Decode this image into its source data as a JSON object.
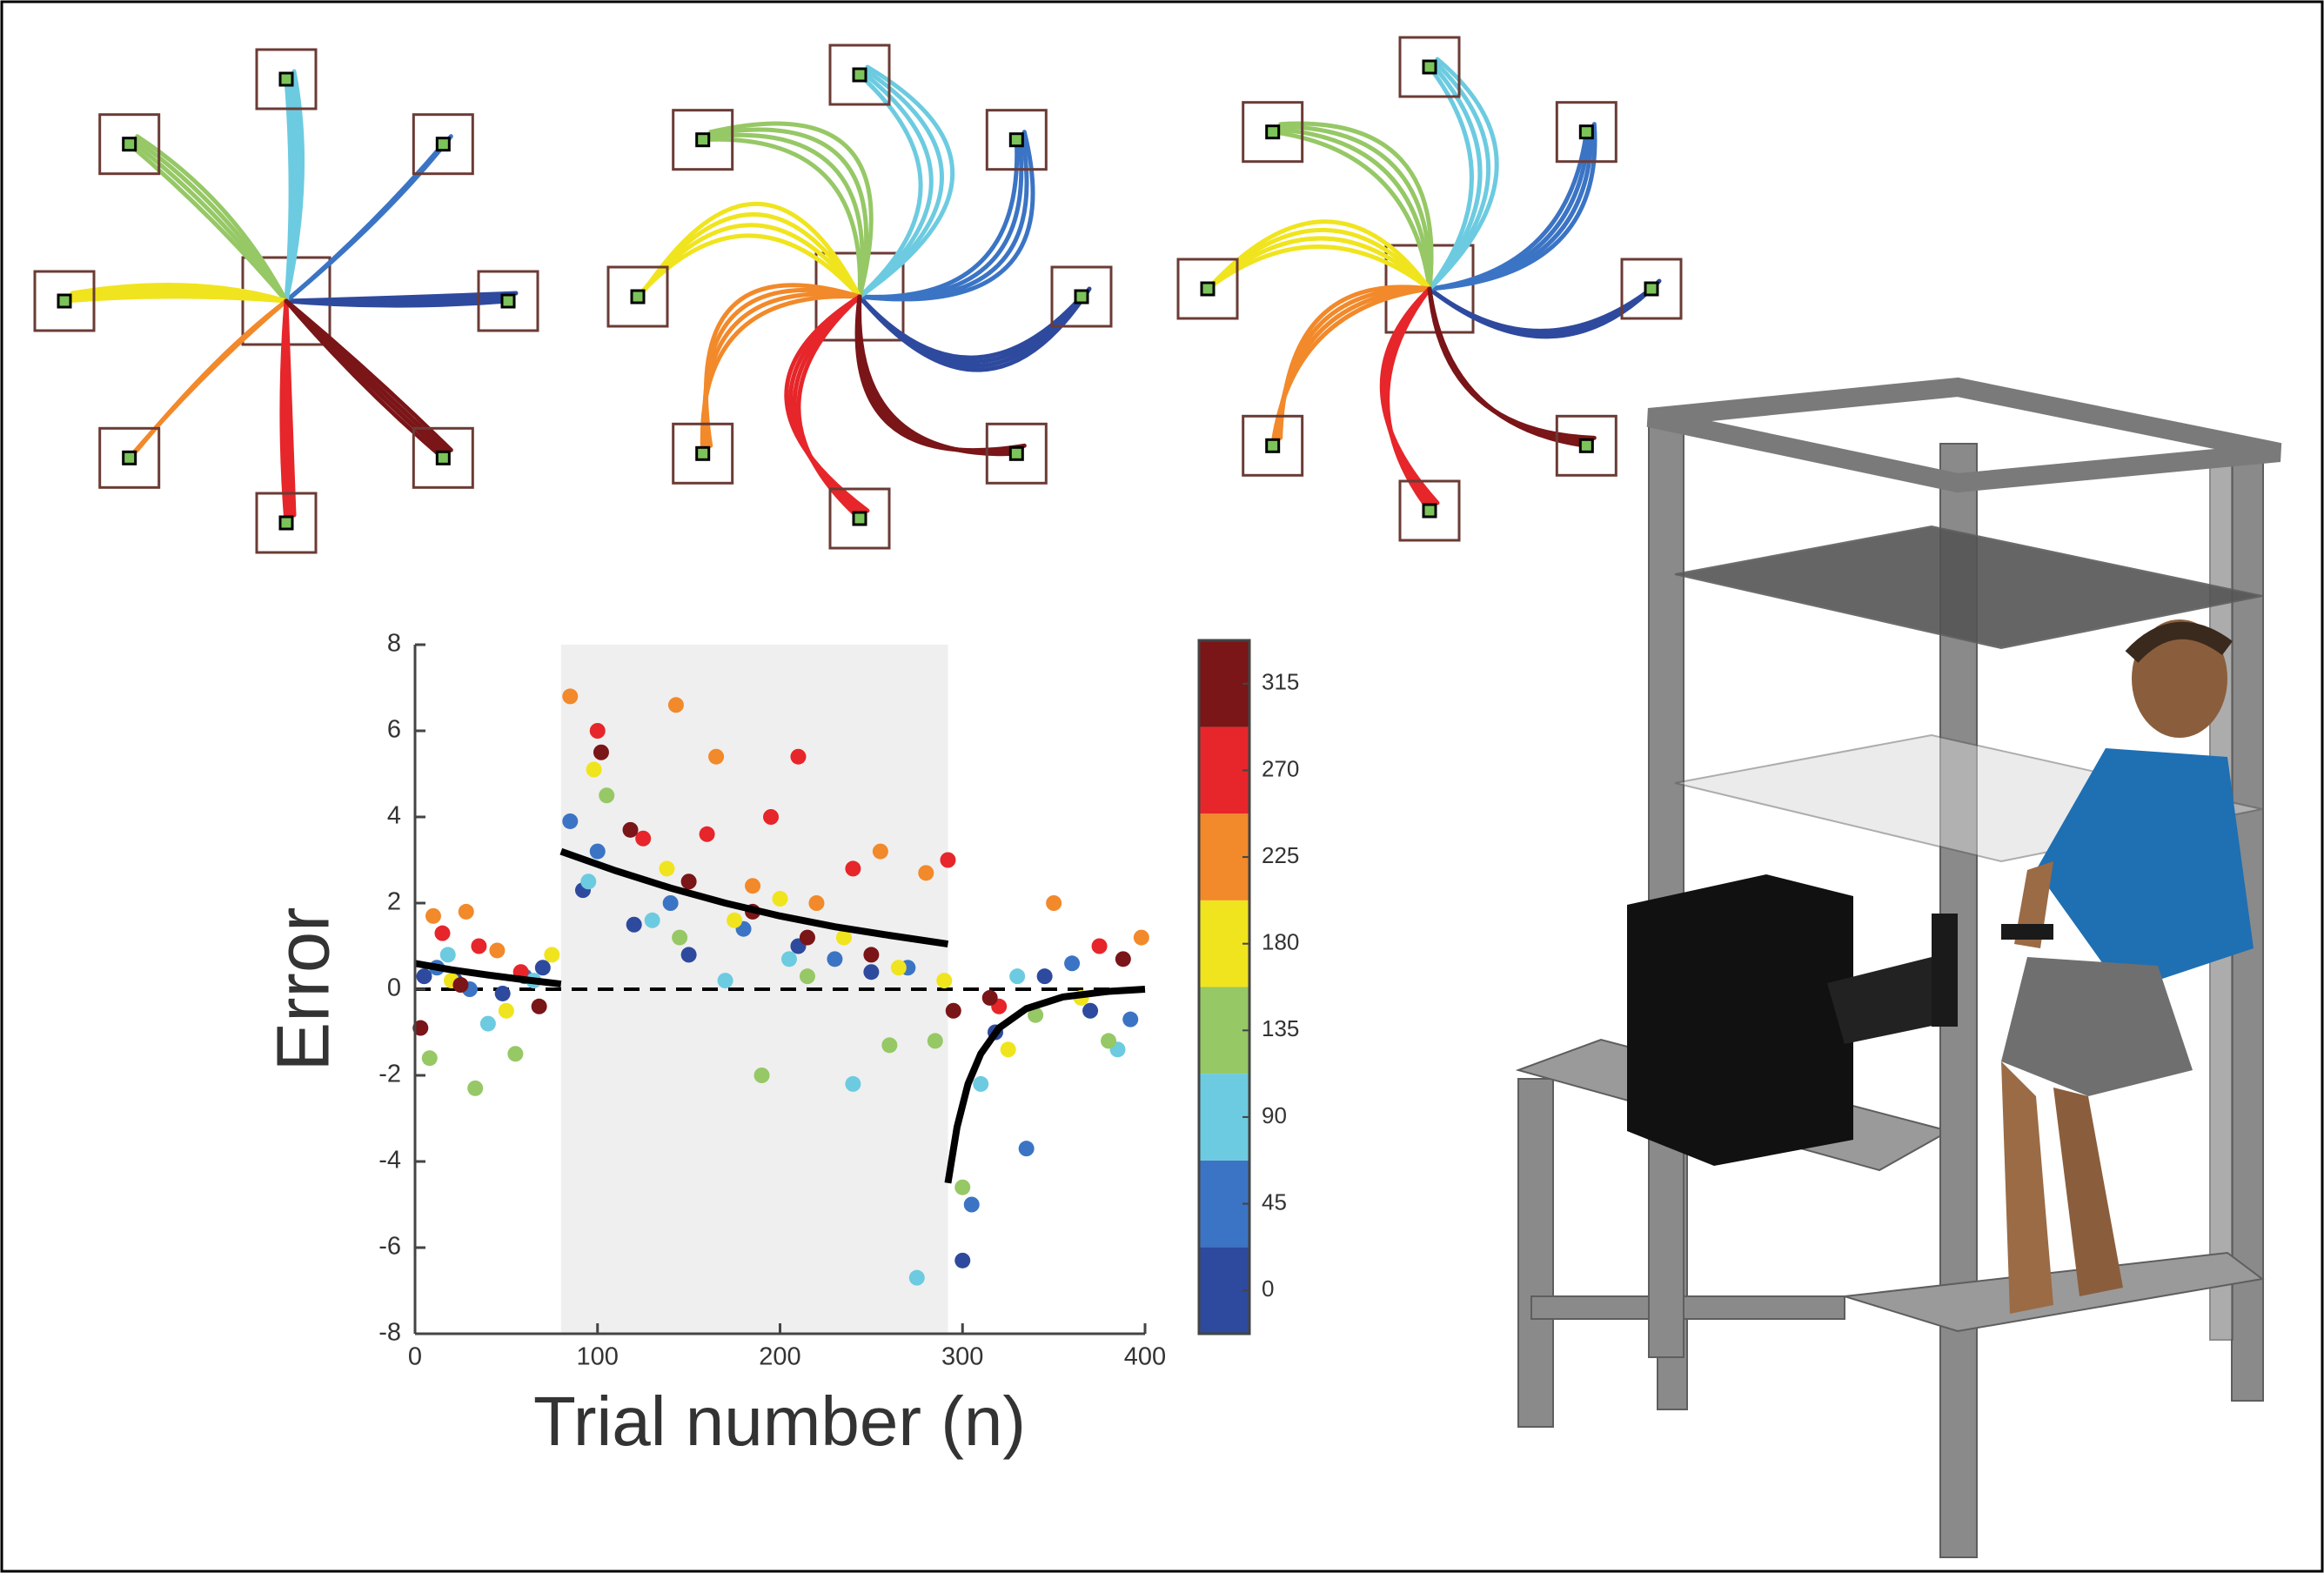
{
  "chart_data": {
    "type": "scatter",
    "xlabel": "Trial number (n)",
    "ylabel": "Error",
    "xlim": [
      0,
      400
    ],
    "ylim": [
      -8,
      8
    ],
    "xticks": [
      0,
      100,
      200,
      300,
      400
    ],
    "yticks": [
      -8,
      -6,
      -4,
      -2,
      0,
      2,
      4,
      6,
      8
    ],
    "shaded_x": [
      80,
      292
    ],
    "reference_line": 0,
    "series": [
      {
        "color": "#2e4a9e",
        "x": [
          5,
          22,
          48,
          70,
          92,
          120,
          150,
          210,
          250,
          300,
          318,
          345,
          370
        ],
        "values": [
          0.3,
          0.2,
          -0.1,
          0.5,
          2.3,
          1.5,
          0.8,
          1.0,
          0.4,
          -6.3,
          -1.0,
          0.3,
          -0.5
        ]
      },
      {
        "color": "#3b74c4",
        "x": [
          12,
          30,
          60,
          85,
          100,
          140,
          180,
          230,
          270,
          305,
          335,
          360,
          392
        ],
        "values": [
          0.5,
          0.0,
          0.3,
          3.9,
          3.2,
          2.0,
          1.4,
          0.7,
          0.5,
          -5.0,
          -3.7,
          0.6,
          -0.7
        ]
      },
      {
        "color": "#6ccbe0",
        "x": [
          18,
          40,
          65,
          95,
          130,
          170,
          205,
          240,
          275,
          310,
          330,
          385
        ],
        "values": [
          0.8,
          -0.8,
          0.2,
          2.5,
          1.6,
          0.2,
          0.7,
          -2.2,
          -6.7,
          -2.2,
          0.3,
          -1.4
        ]
      },
      {
        "color": "#96c866",
        "x": [
          8,
          33,
          55,
          105,
          145,
          190,
          215,
          260,
          285,
          300,
          340,
          380
        ],
        "values": [
          -1.6,
          -2.3,
          -1.5,
          4.5,
          1.2,
          -2.0,
          0.3,
          -1.3,
          -1.2,
          -4.6,
          -0.6,
          -1.2
        ]
      },
      {
        "color": "#f0e41e",
        "x": [
          20,
          50,
          75,
          98,
          138,
          175,
          200,
          235,
          265,
          290,
          325,
          365
        ],
        "values": [
          0.2,
          -0.5,
          0.8,
          5.1,
          2.8,
          1.6,
          2.1,
          1.2,
          0.5,
          0.2,
          -1.4,
          -0.2
        ]
      },
      {
        "color": "#f2892a",
        "x": [
          10,
          28,
          45,
          85,
          143,
          165,
          185,
          220,
          255,
          280,
          350,
          398
        ],
        "values": [
          1.7,
          1.8,
          0.9,
          6.8,
          6.6,
          5.4,
          2.4,
          2.0,
          3.2,
          2.7,
          2.0,
          1.2
        ]
      },
      {
        "color": "#e6262a",
        "x": [
          15,
          35,
          58,
          100,
          125,
          160,
          195,
          210,
          240,
          292,
          320,
          375
        ],
        "values": [
          1.3,
          1.0,
          0.4,
          6.0,
          3.5,
          3.6,
          4.0,
          5.4,
          2.8,
          3.0,
          -0.4,
          1.0
        ]
      },
      {
        "color": "#7a1518",
        "x": [
          3,
          25,
          68,
          102,
          118,
          150,
          185,
          215,
          250,
          295,
          315,
          388
        ],
        "values": [
          -0.9,
          0.1,
          -0.4,
          5.5,
          3.7,
          2.5,
          1.8,
          1.2,
          0.8,
          -0.5,
          -0.2,
          0.7
        ]
      }
    ],
    "fits": [
      {
        "color": "#000000",
        "x": [
          0,
          20,
          40,
          60,
          80
        ],
        "values": [
          0.6,
          0.45,
          0.33,
          0.22,
          0.12
        ]
      },
      {
        "color": "#000000",
        "x": [
          80,
          110,
          140,
          170,
          200,
          230,
          260,
          292
        ],
        "values": [
          3.2,
          2.75,
          2.35,
          2.0,
          1.7,
          1.45,
          1.25,
          1.05
        ]
      },
      {
        "color": "#000000",
        "x": [
          292,
          297,
          303,
          310,
          320,
          335,
          355,
          380,
          400
        ],
        "values": [
          -4.5,
          -3.2,
          -2.2,
          -1.5,
          -0.9,
          -0.45,
          -0.18,
          -0.05,
          0.0
        ]
      }
    ],
    "colorbar": {
      "lim": [
        -22.5,
        337.5
      ],
      "ticks": [
        0,
        45,
        90,
        135,
        180,
        225,
        270,
        315
      ],
      "colors": [
        "#2e4a9e",
        "#3b74c4",
        "#6ccbe0",
        "#96c866",
        "#f0e41e",
        "#f2892a",
        "#e6262a",
        "#7a1518"
      ]
    }
  }
}
